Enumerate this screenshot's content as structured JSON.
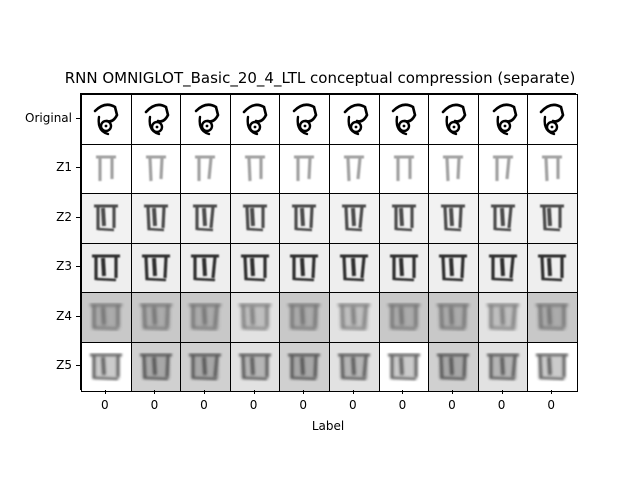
{
  "figure": {
    "title": "RNN OMNIGLOT_Basic_20_4_LTL conceptual compression (separate)",
    "xlabel": "Label"
  },
  "rows": [
    "Original",
    "Z1",
    "Z2",
    "Z3",
    "Z4",
    "Z5"
  ],
  "columns": [
    "0",
    "0",
    "0",
    "0",
    "0",
    "0",
    "0",
    "0",
    "0",
    "0"
  ],
  "row_styles": {
    "Original": {
      "background": "#ffffff",
      "ink": "#000000",
      "blur": 0,
      "opacity": 1.0
    },
    "Z1": {
      "background": "#ffffff",
      "ink": "#555555",
      "blur": 0.8,
      "opacity": 0.55
    },
    "Z2": {
      "background": "#f2f2f2",
      "ink": "#222222",
      "blur": 0.9,
      "opacity": 0.8
    },
    "Z3": {
      "background": "#eeeeee",
      "ink": "#111111",
      "blur": 0.8,
      "opacity": 0.85
    },
    "Z4": {
      "background": "#c8c8c8",
      "ink": "#3a3a3a",
      "blur": 1.6,
      "opacity": 0.6
    },
    "Z5": {
      "background": "#d0d0d0",
      "ink": "#2a2a2a",
      "blur": 1.2,
      "opacity": 0.7
    }
  }
}
